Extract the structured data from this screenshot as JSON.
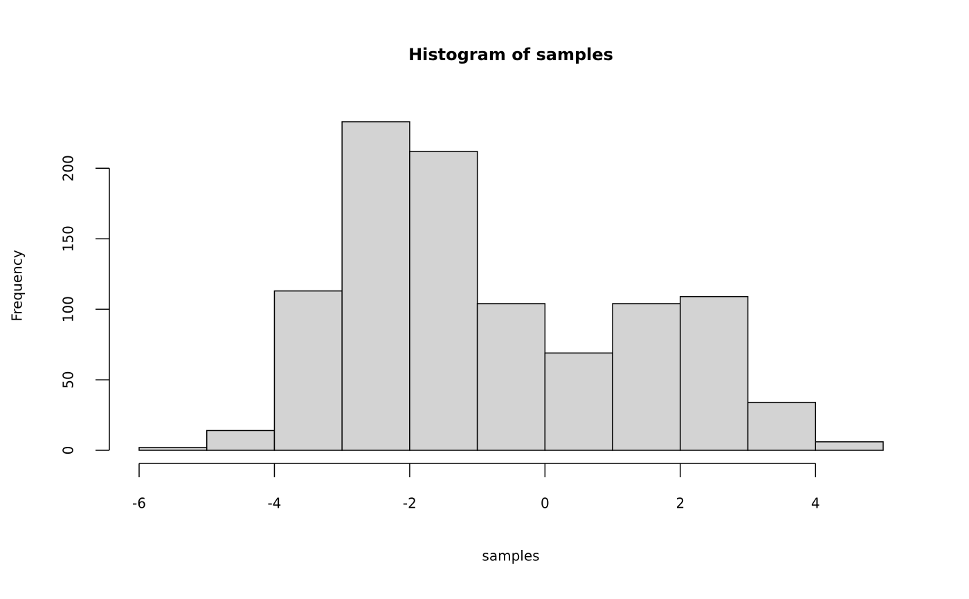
{
  "chart_data": {
    "type": "histogram",
    "title": "Histogram of samples",
    "x_label": "samples",
    "y_label": "Frequency",
    "bins": [
      -6,
      -5,
      -4,
      -3,
      -2,
      -1,
      0,
      1,
      2,
      3,
      4,
      5
    ],
    "values": [
      2,
      14,
      113,
      233,
      212,
      104,
      69,
      104,
      109,
      34,
      6
    ],
    "color": "#d3d3d3",
    "xlim": [
      -6.44,
      5.44
    ],
    "xticks": [
      -6,
      -4,
      -2,
      0,
      2,
      4
    ],
    "ylim": [
      -9.32,
      242.32
    ],
    "yticks": [
      0,
      50,
      100,
      150,
      200
    ]
  }
}
